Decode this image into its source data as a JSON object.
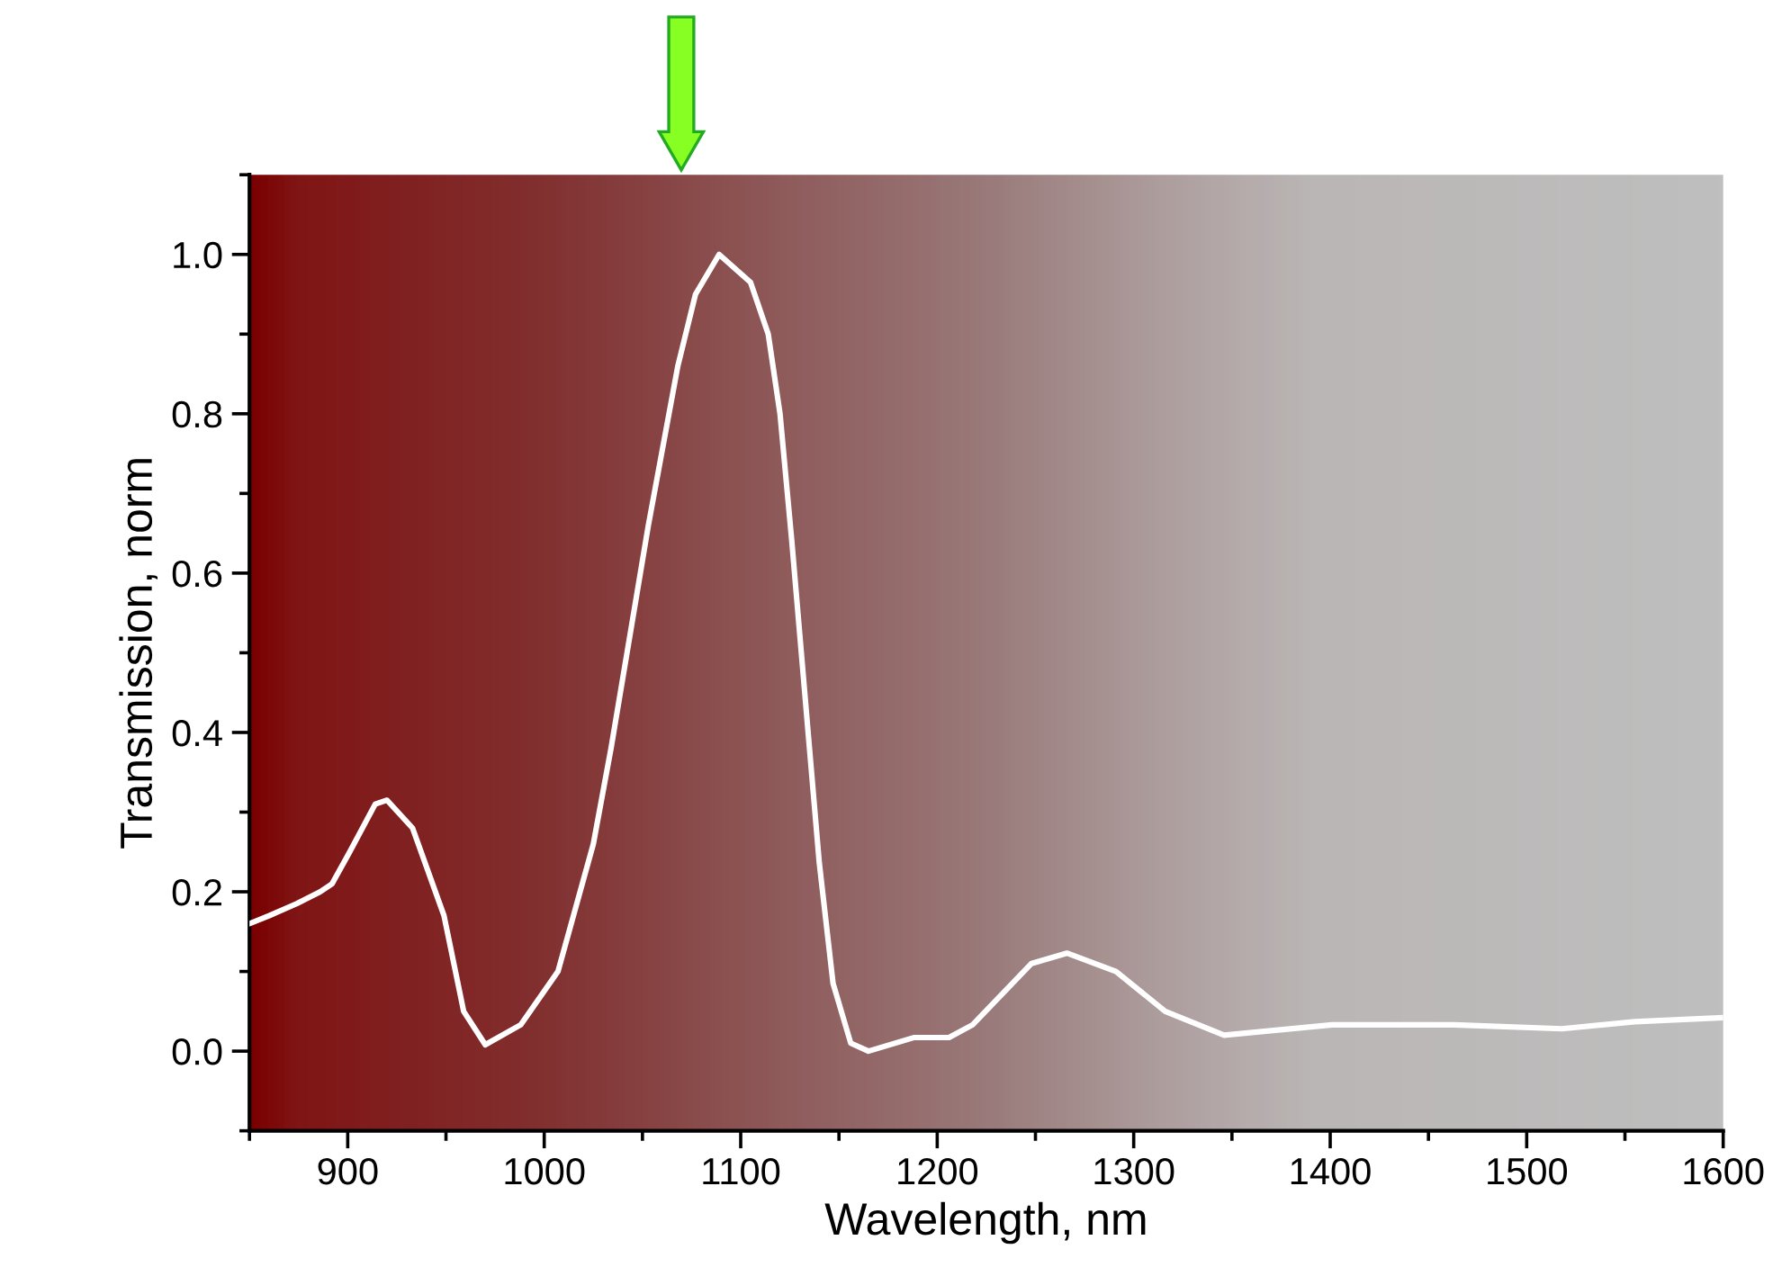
{
  "chart_data": {
    "type": "line",
    "xlabel": "Wavelength, nm",
    "ylabel": "Transmission, norm",
    "xlim": [
      850,
      1600
    ],
    "ylim": [
      -0.1,
      1.1
    ],
    "xticks": [
      {
        "value": 850,
        "label": null
      },
      900,
      {
        "value": 950,
        "label": null
      },
      1000,
      {
        "value": 1050,
        "label": null
      },
      1100,
      {
        "value": 1150,
        "label": null
      },
      1200,
      {
        "value": 1250,
        "label": null
      },
      1300,
      {
        "value": 1350,
        "label": null
      },
      1400,
      {
        "value": 1450,
        "label": null
      },
      1500,
      {
        "value": 1550,
        "label": null
      },
      1600
    ],
    "yticks": [
      {
        "value": -0.1,
        "label": null
      },
      {
        "value": 0,
        "label": "0.0"
      },
      {
        "value": 0.1,
        "label": null
      },
      0.2,
      {
        "value": 0.3,
        "label": null
      },
      0.4,
      {
        "value": 0.5,
        "label": null
      },
      0.6,
      {
        "value": 0.7,
        "label": null
      },
      0.8,
      {
        "value": 0.9,
        "label": null
      },
      {
        "value": 1,
        "label": "1.0"
      },
      {
        "value": 1.1,
        "label": null
      }
    ],
    "grid": false,
    "legend": false,
    "line_style": "solid",
    "marker": "none",
    "series": [
      {
        "color": "#ffffff",
        "x": [
          850,
          860,
          874,
          886,
          892,
          901,
          914,
          920,
          933,
          949,
          959,
          970,
          988,
          1007,
          1025,
          1034,
          1053,
          1068,
          1077,
          1089,
          1105,
          1114,
          1120,
          1126,
          1135,
          1140,
          1147,
          1156,
          1165,
          1188,
          1206,
          1218,
          1248,
          1266,
          1291,
          1316,
          1346,
          1401,
          1463,
          1518,
          1555,
          1600
        ],
        "values": [
          0.16,
          0.17,
          0.185,
          0.2,
          0.21,
          0.25,
          0.31,
          0.315,
          0.28,
          0.17,
          0.05,
          0.008,
          0.033,
          0.1,
          0.26,
          0.38,
          0.66,
          0.86,
          0.95,
          1.0,
          0.965,
          0.9,
          0.8,
          0.64,
          0.38,
          0.236,
          0.085,
          0.01,
          0.0,
          0.017,
          0.017,
          0.033,
          0.11,
          0.123,
          0.1,
          0.05,
          0.02,
          0.033,
          0.033,
          0.028,
          0.037,
          0.042
        ]
      }
    ]
  }
}
